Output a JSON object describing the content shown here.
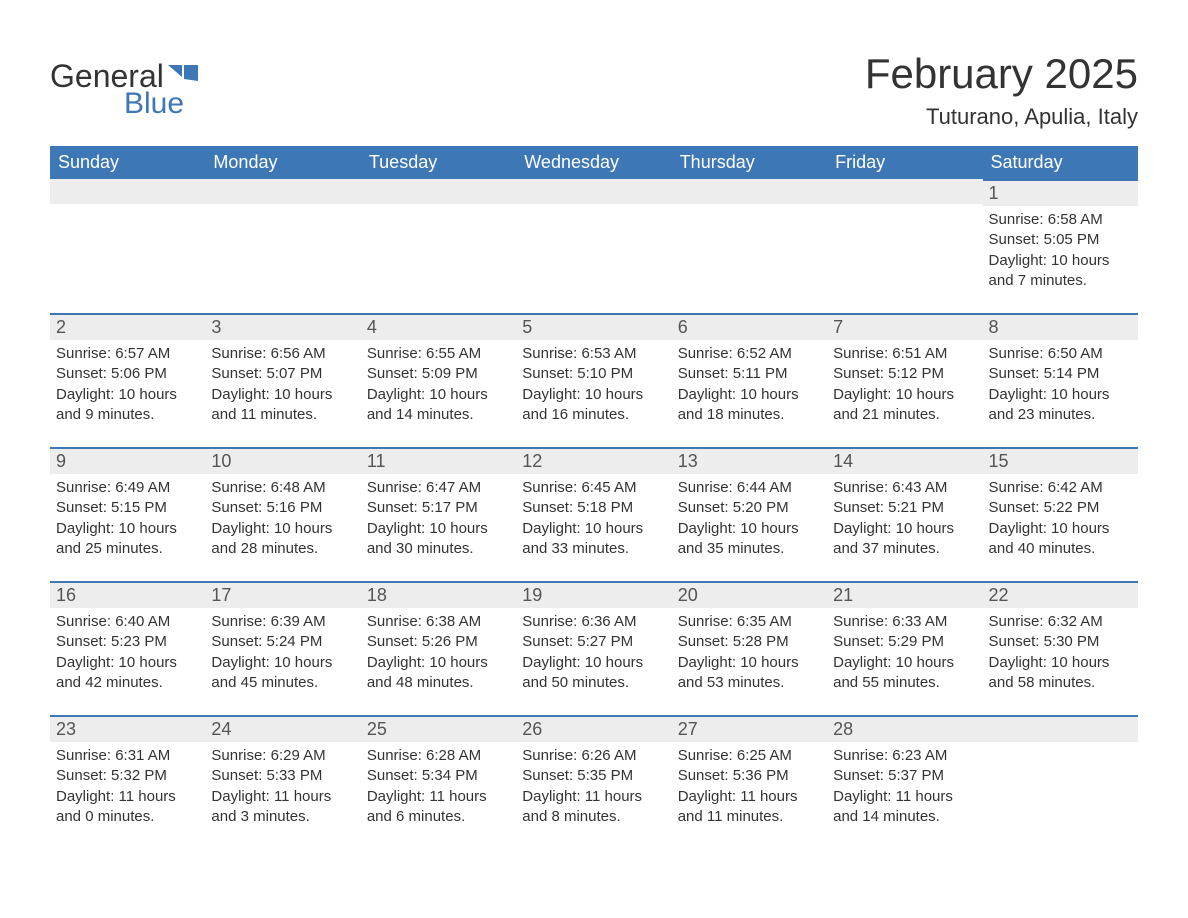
{
  "logo": {
    "word1": "General",
    "word2": "Blue"
  },
  "title": "February 2025",
  "location": "Tuturano, Apulia, Italy",
  "colors": {
    "brand_blue": "#3d77b6",
    "header_row_bg": "#ededed",
    "text": "#333333",
    "bg": "#ffffff"
  },
  "daynames": [
    "Sunday",
    "Monday",
    "Tuesday",
    "Wednesday",
    "Thursday",
    "Friday",
    "Saturday"
  ],
  "weeks": [
    [
      null,
      null,
      null,
      null,
      null,
      null,
      {
        "n": "1",
        "sunrise": "Sunrise: 6:58 AM",
        "sunset": "Sunset: 5:05 PM",
        "d1": "Daylight: 10 hours",
        "d2": "and 7 minutes."
      }
    ],
    [
      {
        "n": "2",
        "sunrise": "Sunrise: 6:57 AM",
        "sunset": "Sunset: 5:06 PM",
        "d1": "Daylight: 10 hours",
        "d2": "and 9 minutes."
      },
      {
        "n": "3",
        "sunrise": "Sunrise: 6:56 AM",
        "sunset": "Sunset: 5:07 PM",
        "d1": "Daylight: 10 hours",
        "d2": "and 11 minutes."
      },
      {
        "n": "4",
        "sunrise": "Sunrise: 6:55 AM",
        "sunset": "Sunset: 5:09 PM",
        "d1": "Daylight: 10 hours",
        "d2": "and 14 minutes."
      },
      {
        "n": "5",
        "sunrise": "Sunrise: 6:53 AM",
        "sunset": "Sunset: 5:10 PM",
        "d1": "Daylight: 10 hours",
        "d2": "and 16 minutes."
      },
      {
        "n": "6",
        "sunrise": "Sunrise: 6:52 AM",
        "sunset": "Sunset: 5:11 PM",
        "d1": "Daylight: 10 hours",
        "d2": "and 18 minutes."
      },
      {
        "n": "7",
        "sunrise": "Sunrise: 6:51 AM",
        "sunset": "Sunset: 5:12 PM",
        "d1": "Daylight: 10 hours",
        "d2": "and 21 minutes."
      },
      {
        "n": "8",
        "sunrise": "Sunrise: 6:50 AM",
        "sunset": "Sunset: 5:14 PM",
        "d1": "Daylight: 10 hours",
        "d2": "and 23 minutes."
      }
    ],
    [
      {
        "n": "9",
        "sunrise": "Sunrise: 6:49 AM",
        "sunset": "Sunset: 5:15 PM",
        "d1": "Daylight: 10 hours",
        "d2": "and 25 minutes."
      },
      {
        "n": "10",
        "sunrise": "Sunrise: 6:48 AM",
        "sunset": "Sunset: 5:16 PM",
        "d1": "Daylight: 10 hours",
        "d2": "and 28 minutes."
      },
      {
        "n": "11",
        "sunrise": "Sunrise: 6:47 AM",
        "sunset": "Sunset: 5:17 PM",
        "d1": "Daylight: 10 hours",
        "d2": "and 30 minutes."
      },
      {
        "n": "12",
        "sunrise": "Sunrise: 6:45 AM",
        "sunset": "Sunset: 5:18 PM",
        "d1": "Daylight: 10 hours",
        "d2": "and 33 minutes."
      },
      {
        "n": "13",
        "sunrise": "Sunrise: 6:44 AM",
        "sunset": "Sunset: 5:20 PM",
        "d1": "Daylight: 10 hours",
        "d2": "and 35 minutes."
      },
      {
        "n": "14",
        "sunrise": "Sunrise: 6:43 AM",
        "sunset": "Sunset: 5:21 PM",
        "d1": "Daylight: 10 hours",
        "d2": "and 37 minutes."
      },
      {
        "n": "15",
        "sunrise": "Sunrise: 6:42 AM",
        "sunset": "Sunset: 5:22 PM",
        "d1": "Daylight: 10 hours",
        "d2": "and 40 minutes."
      }
    ],
    [
      {
        "n": "16",
        "sunrise": "Sunrise: 6:40 AM",
        "sunset": "Sunset: 5:23 PM",
        "d1": "Daylight: 10 hours",
        "d2": "and 42 minutes."
      },
      {
        "n": "17",
        "sunrise": "Sunrise: 6:39 AM",
        "sunset": "Sunset: 5:24 PM",
        "d1": "Daylight: 10 hours",
        "d2": "and 45 minutes."
      },
      {
        "n": "18",
        "sunrise": "Sunrise: 6:38 AM",
        "sunset": "Sunset: 5:26 PM",
        "d1": "Daylight: 10 hours",
        "d2": "and 48 minutes."
      },
      {
        "n": "19",
        "sunrise": "Sunrise: 6:36 AM",
        "sunset": "Sunset: 5:27 PM",
        "d1": "Daylight: 10 hours",
        "d2": "and 50 minutes."
      },
      {
        "n": "20",
        "sunrise": "Sunrise: 6:35 AM",
        "sunset": "Sunset: 5:28 PM",
        "d1": "Daylight: 10 hours",
        "d2": "and 53 minutes."
      },
      {
        "n": "21",
        "sunrise": "Sunrise: 6:33 AM",
        "sunset": "Sunset: 5:29 PM",
        "d1": "Daylight: 10 hours",
        "d2": "and 55 minutes."
      },
      {
        "n": "22",
        "sunrise": "Sunrise: 6:32 AM",
        "sunset": "Sunset: 5:30 PM",
        "d1": "Daylight: 10 hours",
        "d2": "and 58 minutes."
      }
    ],
    [
      {
        "n": "23",
        "sunrise": "Sunrise: 6:31 AM",
        "sunset": "Sunset: 5:32 PM",
        "d1": "Daylight: 11 hours",
        "d2": "and 0 minutes."
      },
      {
        "n": "24",
        "sunrise": "Sunrise: 6:29 AM",
        "sunset": "Sunset: 5:33 PM",
        "d1": "Daylight: 11 hours",
        "d2": "and 3 minutes."
      },
      {
        "n": "25",
        "sunrise": "Sunrise: 6:28 AM",
        "sunset": "Sunset: 5:34 PM",
        "d1": "Daylight: 11 hours",
        "d2": "and 6 minutes."
      },
      {
        "n": "26",
        "sunrise": "Sunrise: 6:26 AM",
        "sunset": "Sunset: 5:35 PM",
        "d1": "Daylight: 11 hours",
        "d2": "and 8 minutes."
      },
      {
        "n": "27",
        "sunrise": "Sunrise: 6:25 AM",
        "sunset": "Sunset: 5:36 PM",
        "d1": "Daylight: 11 hours",
        "d2": "and 11 minutes."
      },
      {
        "n": "28",
        "sunrise": "Sunrise: 6:23 AM",
        "sunset": "Sunset: 5:37 PM",
        "d1": "Daylight: 11 hours",
        "d2": "and 14 minutes."
      },
      null
    ]
  ]
}
